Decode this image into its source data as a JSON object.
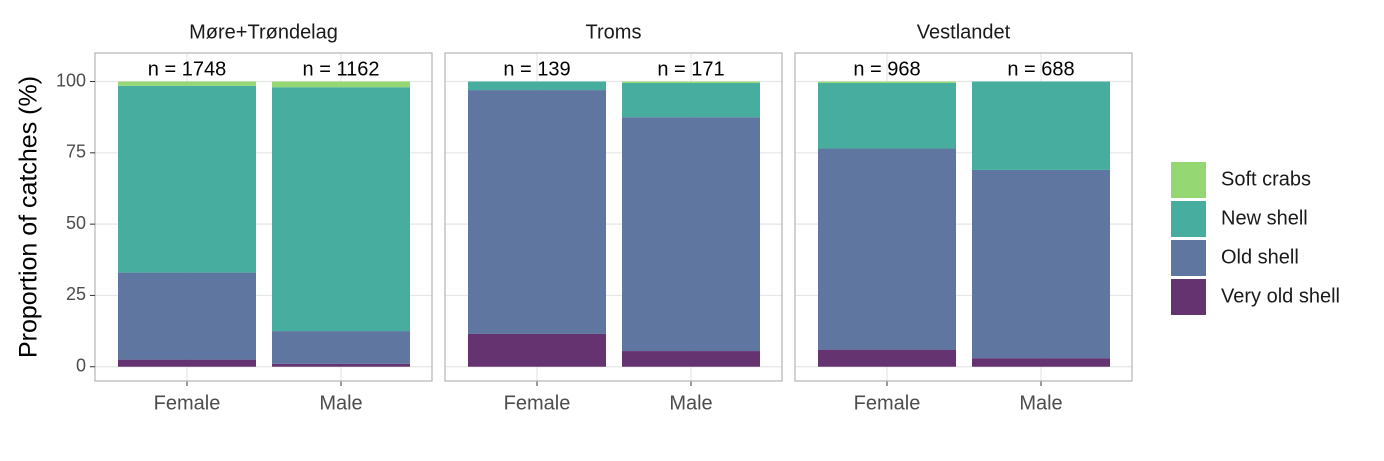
{
  "chart_data": {
    "type": "bar",
    "stacked": true,
    "ylabel": "Proportion of catches (%)",
    "facets": [
      "Møre+Trøndelag",
      "Troms",
      "Vestlandet"
    ],
    "categories": [
      "Female",
      "Male"
    ],
    "annotations": [
      [
        "n = 1748",
        "n = 1162"
      ],
      [
        "n = 139",
        "n = 171"
      ],
      [
        "n = 968",
        "n = 688"
      ]
    ],
    "series": [
      {
        "name": "Very old shell",
        "color": "#65336f",
        "values": [
          [
            2.5,
            1
          ],
          [
            11.5,
            5.5
          ],
          [
            6,
            3
          ]
        ]
      },
      {
        "name": "Old shell",
        "color": "#5e76a0",
        "values": [
          [
            30.5,
            11.5
          ],
          [
            85.5,
            82
          ],
          [
            70.5,
            66
          ]
        ]
      },
      {
        "name": "New shell",
        "color": "#47ae9f",
        "values": [
          [
            65.5,
            85.5
          ],
          [
            3,
            12
          ],
          [
            23,
            31
          ]
        ]
      },
      {
        "name": "Soft crabs",
        "color": "#95d873",
        "values": [
          [
            1.5,
            2
          ],
          [
            0,
            0.5
          ],
          [
            0.5,
            0
          ]
        ]
      }
    ],
    "ylim": [
      -5,
      110
    ],
    "yticks": [
      0,
      25,
      50,
      75,
      100
    ],
    "grid": true,
    "legend": "right"
  }
}
